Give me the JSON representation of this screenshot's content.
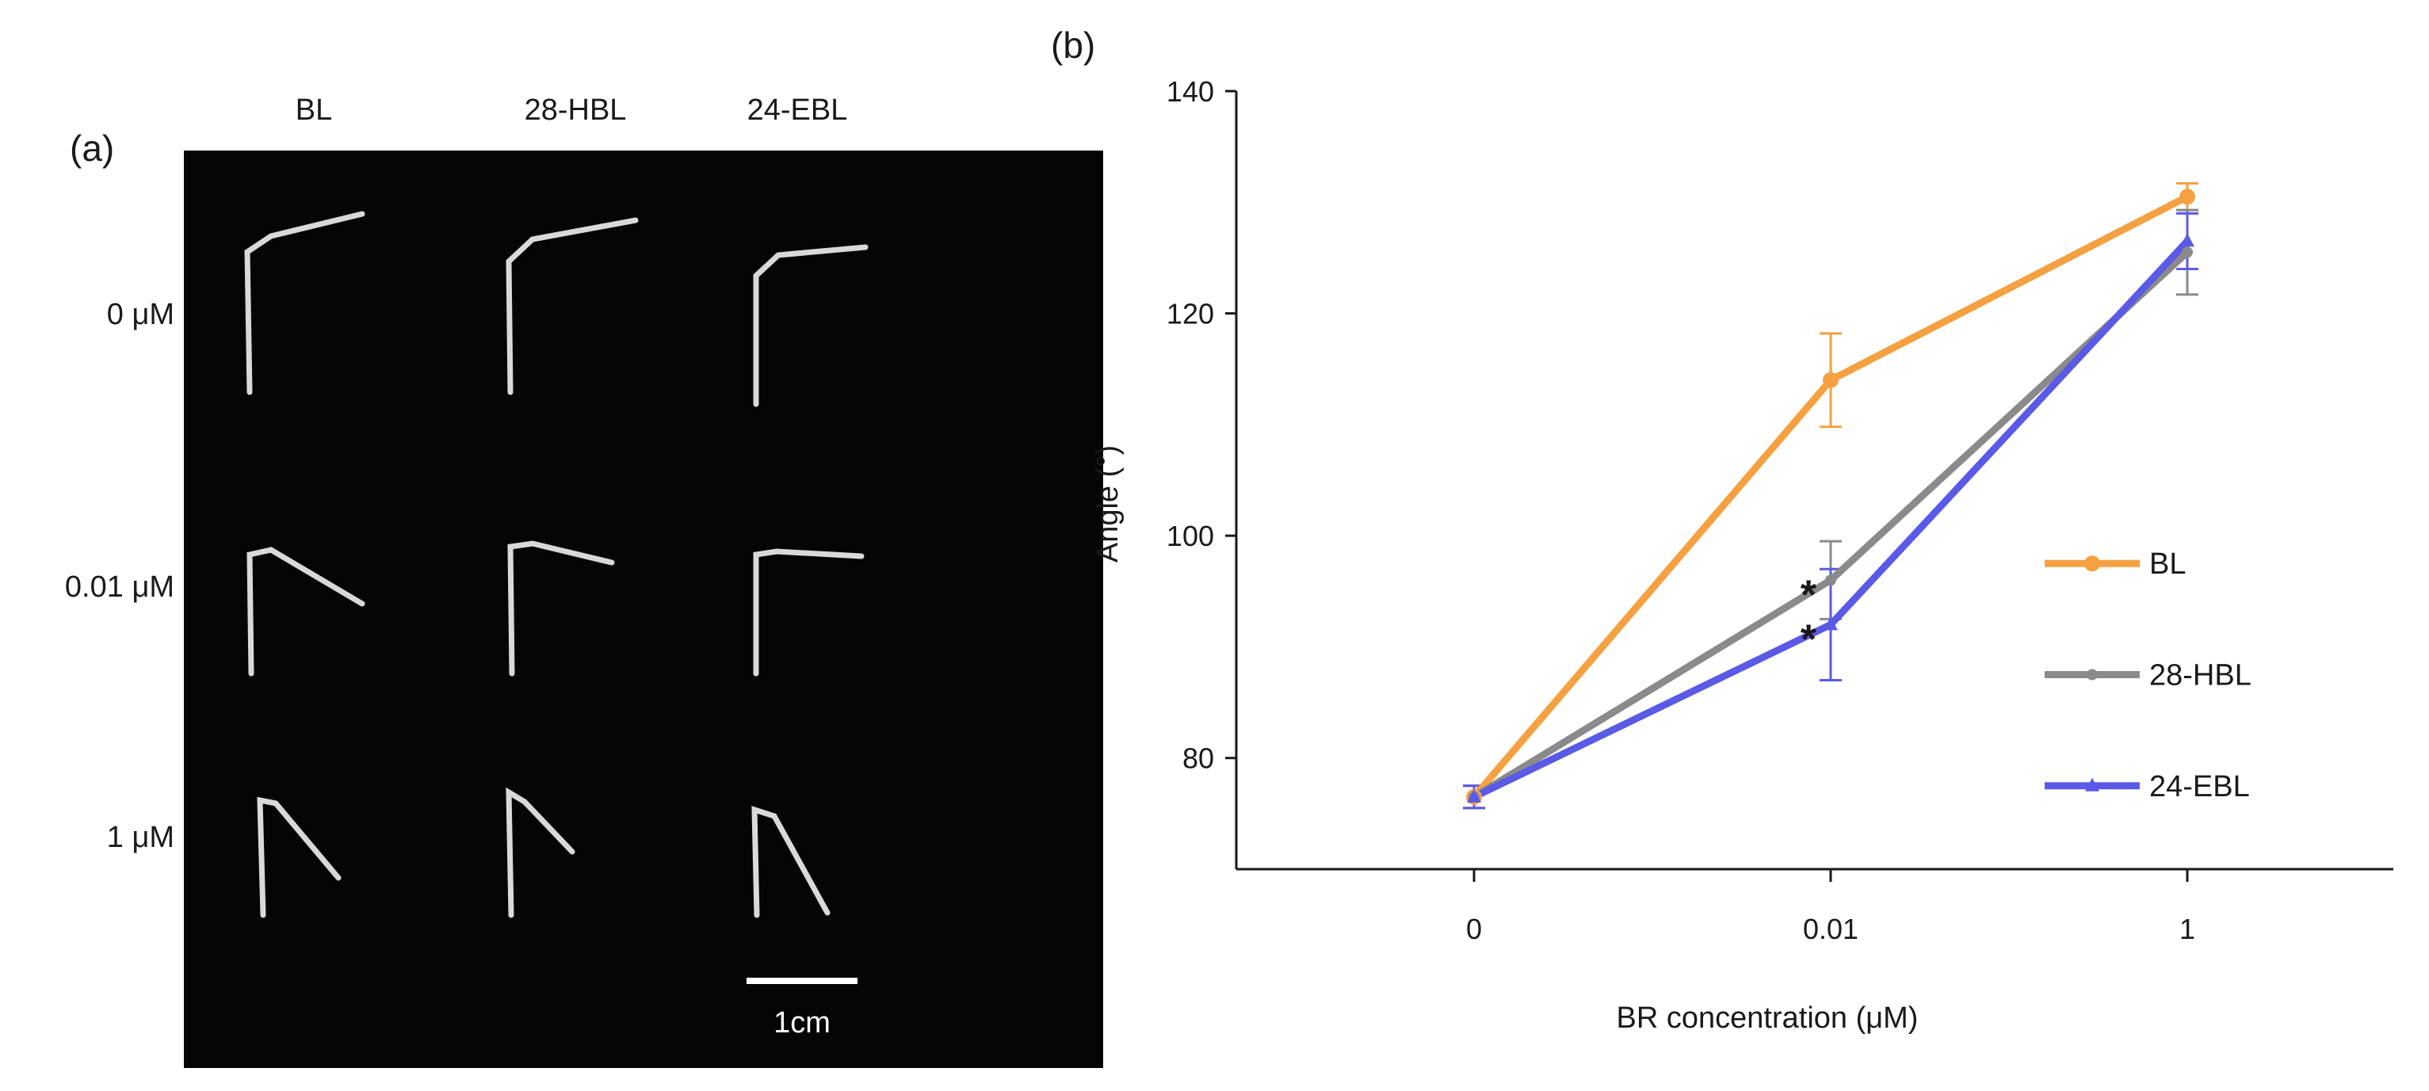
{
  "figure": {
    "panel_a": {
      "label": "(a)",
      "columns": [
        "BL",
        "28-HBL",
        "24-EBL"
      ],
      "rows": [
        "0 μM",
        "0.01 μM",
        "1 μM"
      ],
      "scale_bar_label": "1cm",
      "background": "#050505",
      "leaf_color": "#d9d9d9"
    },
    "panel_b": {
      "label": "(b)"
    }
  },
  "chart_data": {
    "type": "line",
    "xlabel": "BR concentration (μM)",
    "ylabel": "Angle (°)",
    "categories": [
      "0",
      "0.01",
      "1"
    ],
    "ylim": [
      70,
      140
    ],
    "yticks": [
      80,
      100,
      120,
      140
    ],
    "grid": false,
    "legend_placement": "right",
    "series": [
      {
        "name": "BL",
        "color": "#f5a041",
        "marker": "circle",
        "values": [
          76.5,
          114,
          130.5
        ],
        "errors": [
          1.0,
          4.2,
          1.2
        ]
      },
      {
        "name": "28-HBL",
        "color": "#8a8a8a",
        "marker": "dot",
        "values": [
          76.5,
          96,
          125.5
        ],
        "errors": [
          1.0,
          3.5,
          3.8
        ]
      },
      {
        "name": "24-EBL",
        "color": "#5a5ae6",
        "marker": "triangle",
        "values": [
          76.5,
          92,
          126.5
        ],
        "errors": [
          1.0,
          5.0,
          2.5
        ]
      }
    ],
    "annotations": [
      {
        "text": "*",
        "category": "0.01",
        "series": "28-HBL"
      },
      {
        "text": "*",
        "category": "0.01",
        "series": "24-EBL"
      }
    ]
  }
}
